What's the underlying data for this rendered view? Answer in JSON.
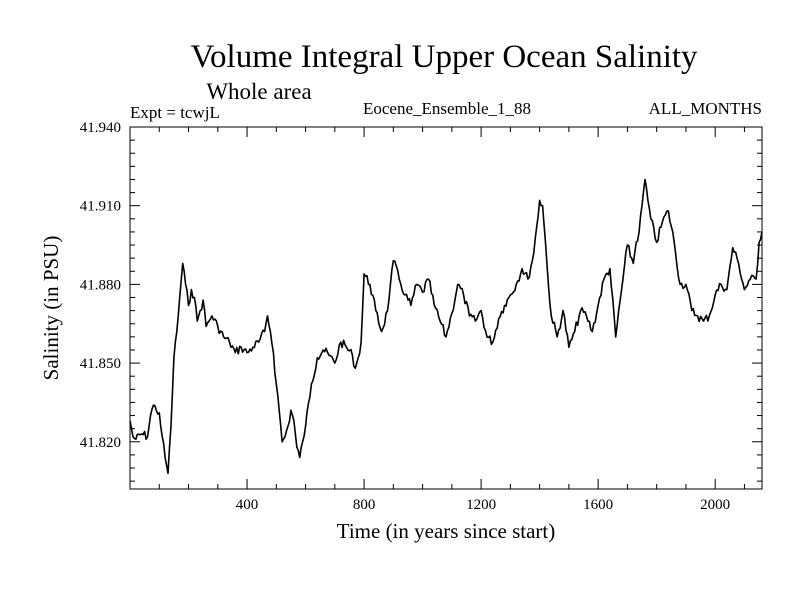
{
  "chart_data": {
    "type": "line",
    "title": "Volume Integral Upper Ocean Salinity",
    "subtitle": "Whole area",
    "experiment": "Expt = tcwjL",
    "run_name": "Eocene_Ensemble_1_88",
    "months": "ALL_MONTHS",
    "xlabel": "Time (in years since start)",
    "ylabel": "Salinity (in PSU)",
    "xlim": [
      0,
      2160
    ],
    "ylim": [
      41.802,
      41.94
    ],
    "xticks": [
      400,
      800,
      1200,
      1600,
      2000
    ],
    "xtick_labels": [
      "400",
      "800",
      "1200",
      "1600",
      "2000"
    ],
    "yticks": [
      41.82,
      41.85,
      41.88,
      41.91,
      41.94
    ],
    "ytick_labels": [
      "41.820",
      "41.850",
      "41.880",
      "41.910",
      "41.940"
    ],
    "grid": false,
    "line_color": "#000000",
    "series": [
      {
        "x": [
          0,
          10,
          20,
          40,
          60,
          70,
          80,
          90,
          100,
          110,
          120,
          130,
          140,
          150,
          160,
          170,
          180,
          190,
          200,
          210,
          220,
          230,
          240,
          250,
          260,
          270,
          280,
          300,
          320,
          340,
          360,
          380,
          400,
          420,
          440,
          460,
          470,
          480,
          490,
          500,
          510,
          520,
          530,
          540,
          550,
          560,
          570,
          580,
          590,
          600,
          620,
          640,
          660,
          680,
          700,
          720,
          740,
          760,
          770,
          780,
          790,
          800,
          820,
          840,
          860,
          880,
          890,
          900,
          920,
          940,
          960,
          980,
          1000,
          1020,
          1040,
          1060,
          1080,
          1100,
          1120,
          1140,
          1160,
          1180,
          1200,
          1220,
          1240,
          1260,
          1280,
          1300,
          1320,
          1340,
          1360,
          1380,
          1390,
          1400,
          1410,
          1420,
          1430,
          1440,
          1460,
          1480,
          1500,
          1520,
          1540,
          1560,
          1580,
          1600,
          1620,
          1640,
          1660,
          1680,
          1700,
          1720,
          1730,
          1740,
          1750,
          1760,
          1770,
          1780,
          1800,
          1820,
          1840,
          1860,
          1880,
          1900,
          1920,
          1940,
          1960,
          1980,
          2000,
          2020,
          2040,
          2060,
          2080,
          2100,
          2120,
          2140,
          2150,
          2160
        ],
        "y": [
          41.828,
          41.822,
          41.821,
          41.823,
          41.822,
          41.83,
          41.834,
          41.832,
          41.831,
          41.822,
          41.814,
          41.808,
          41.826,
          41.852,
          41.862,
          41.875,
          41.888,
          41.88,
          41.872,
          41.878,
          41.875,
          41.866,
          41.87,
          41.874,
          41.864,
          41.866,
          41.868,
          41.864,
          41.86,
          41.858,
          41.854,
          41.856,
          41.854,
          41.856,
          41.858,
          41.862,
          41.868,
          41.862,
          41.854,
          41.842,
          41.832,
          41.82,
          41.822,
          41.826,
          41.832,
          41.828,
          41.818,
          41.814,
          41.82,
          41.826,
          41.842,
          41.852,
          41.855,
          41.853,
          41.85,
          41.858,
          41.856,
          41.853,
          41.848,
          41.852,
          41.858,
          41.884,
          41.88,
          41.87,
          41.862,
          41.87,
          41.88,
          41.889,
          41.882,
          41.876,
          41.872,
          41.88,
          41.877,
          41.882,
          41.872,
          41.866,
          41.86,
          41.869,
          41.88,
          41.876,
          41.868,
          41.866,
          41.87,
          41.86,
          41.858,
          41.867,
          41.872,
          41.876,
          41.88,
          41.886,
          41.882,
          41.892,
          41.902,
          41.912,
          41.91,
          41.896,
          41.88,
          41.868,
          41.86,
          41.87,
          41.856,
          41.862,
          41.87,
          41.868,
          41.862,
          41.872,
          41.882,
          41.886,
          41.86,
          41.878,
          41.895,
          41.888,
          41.896,
          41.9,
          41.91,
          41.92,
          41.912,
          41.905,
          41.896,
          41.904,
          41.908,
          41.896,
          41.88,
          41.88,
          41.87,
          41.868,
          41.866,
          41.868,
          41.876,
          41.88,
          41.878,
          41.894,
          41.888,
          41.878,
          41.882,
          41.882,
          41.896,
          41.9
        ]
      }
    ]
  }
}
